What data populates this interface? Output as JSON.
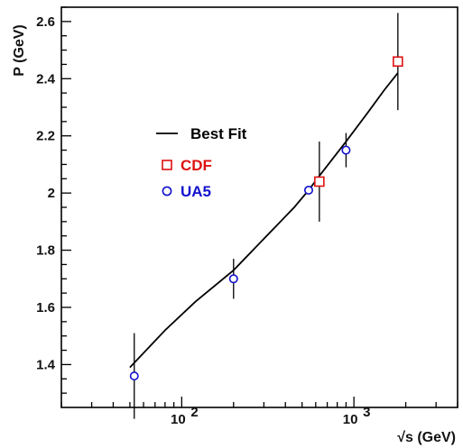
{
  "chart_data": {
    "type": "scatter",
    "title": "",
    "xlabel": "√s (GeV)",
    "ylabel": "P (GeV)",
    "x_scale": "log",
    "xlim": [
      20,
      4000
    ],
    "ylim": [
      1.25,
      2.65
    ],
    "x_ticks": [
      {
        "value": 100,
        "base": "10",
        "exp": "2"
      },
      {
        "value": 1000,
        "base": "10",
        "exp": "3"
      }
    ],
    "y_ticks": [
      {
        "value": 1.4,
        "label": "1.4"
      },
      {
        "value": 1.6,
        "label": "1.6"
      },
      {
        "value": 1.8,
        "label": "1.8"
      },
      {
        "value": 2.0,
        "label": "2"
      },
      {
        "value": 2.2,
        "label": "2.2"
      },
      {
        "value": 2.4,
        "label": "2.4"
      },
      {
        "value": 2.6,
        "label": "2.6"
      }
    ],
    "grid": false,
    "legend_position": "center-left",
    "colors": {
      "fit": "#000000",
      "cdf": "#dd1111",
      "ua5": "#1111cc",
      "axis": "#000000"
    },
    "series": [
      {
        "name": "Best Fit",
        "kind": "line",
        "points": [
          {
            "x": 50,
            "y": 1.39
          },
          {
            "x": 80,
            "y": 1.52
          },
          {
            "x": 120,
            "y": 1.62
          },
          {
            "x": 200,
            "y": 1.73
          },
          {
            "x": 300,
            "y": 1.84
          },
          {
            "x": 450,
            "y": 1.95
          },
          {
            "x": 546,
            "y": 2.01
          },
          {
            "x": 630,
            "y": 2.06
          },
          {
            "x": 800,
            "y": 2.14
          },
          {
            "x": 900,
            "y": 2.18
          },
          {
            "x": 1200,
            "y": 2.28
          },
          {
            "x": 1500,
            "y": 2.36
          },
          {
            "x": 1800,
            "y": 2.42
          }
        ]
      },
      {
        "name": "CDF",
        "kind": "square",
        "points": [
          {
            "x": 630,
            "y": 2.04,
            "err": 0.14
          },
          {
            "x": 1800,
            "y": 2.46,
            "err": 0.17
          }
        ]
      },
      {
        "name": "UA5",
        "kind": "circle",
        "points": [
          {
            "x": 53,
            "y": 1.36,
            "err": 0.15
          },
          {
            "x": 200,
            "y": 1.7,
            "err": 0.07
          },
          {
            "x": 546,
            "y": 2.01,
            "err": 0.0
          },
          {
            "x": 900,
            "y": 2.15,
            "err": 0.06
          }
        ]
      }
    ]
  }
}
